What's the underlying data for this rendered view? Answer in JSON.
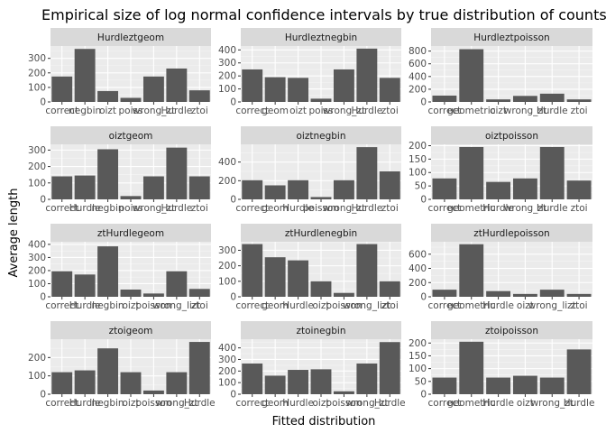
{
  "chart_data": {
    "type": "bar",
    "title": "Empirical size of log normal confidence intervals by true distribution of counts",
    "xlabel": "Fitted distribution",
    "ylabel": "Average length",
    "facet_layout": "3 columns, 4 rows, free scales",
    "grid": true,
    "panel_background": "#ebebeb",
    "strip_background": "#d9d9d9",
    "bar_color": "#595959",
    "panels": [
      {
        "name": "Hurdleztgeom",
        "categories": [
          "correct",
          "negbin",
          "oizt",
          "poisson",
          "wrong_zt",
          "ztHurdle",
          "ztoi"
        ],
        "tick_labels": [
          "correct",
          "negbin",
          "oizt",
          "poiss",
          "wrong_zt",
          "Hurdle",
          "ztoi"
        ],
        "values": [
          175,
          365,
          75,
          28,
          175,
          230,
          80
        ],
        "ylim": [
          0,
          385
        ],
        "yticks": [
          0,
          100,
          200,
          300
        ]
      },
      {
        "name": "Hurdleztnegbin",
        "categories": [
          "correct",
          "geom",
          "oizt",
          "poisson",
          "wrong_zt",
          "ztHurdle",
          "ztoi"
        ],
        "tick_labels": [
          "correct",
          "geom",
          "oizt",
          "poiss",
          "wrong_zt",
          "Hurdle",
          "ztoi"
        ],
        "values": [
          250,
          190,
          185,
          25,
          250,
          410,
          185
        ],
        "ylim": [
          0,
          430
        ],
        "yticks": [
          0,
          100,
          200,
          300,
          400
        ]
      },
      {
        "name": "Hurdleztpoisson",
        "categories": [
          "correct",
          "geometric",
          "oizt",
          "wrong_zt",
          "ztHurdle",
          "ztoi"
        ],
        "tick_labels": [
          "correct",
          "geometric",
          "oizt",
          "wrong_zt",
          "Hurdle",
          "ztoi"
        ],
        "values": [
          100,
          830,
          40,
          95,
          130,
          40
        ],
        "ylim": [
          0,
          880
        ],
        "yticks": [
          0,
          200,
          400,
          600,
          800
        ]
      },
      {
        "name": "oiztgeom",
        "categories": [
          "correct",
          "Hurdle",
          "negbin",
          "poisson",
          "wrong_zt",
          "ztHurdle",
          "ztoi"
        ],
        "tick_labels": [
          "correct",
          "Hurdle",
          "negbin",
          "poiss",
          "wrong_zt",
          "Hurdle",
          "ztoi"
        ],
        "values": [
          140,
          145,
          305,
          20,
          140,
          315,
          140
        ],
        "ylim": [
          0,
          335
        ],
        "yticks": [
          0,
          100,
          200,
          300
        ]
      },
      {
        "name": "oiztnegbin",
        "categories": [
          "correct",
          "geom",
          "Hurdle",
          "poisson",
          "wrong_zt",
          "ztHurdle",
          "ztoi"
        ],
        "tick_labels": [
          "correct",
          "geom",
          "Hurdle",
          "poisson",
          "wrong_zt",
          "Hurdle",
          "ztoi"
        ],
        "values": [
          205,
          150,
          205,
          25,
          205,
          560,
          300
        ],
        "ylim": [
          0,
          590
        ],
        "yticks": [
          0,
          200,
          400
        ]
      },
      {
        "name": "oiztpoisson",
        "categories": [
          "correct",
          "geometric",
          "Hurdle",
          "wrong_zt",
          "ztHurdle",
          "ztoi"
        ],
        "tick_labels": [
          "correct",
          "geometric",
          "Hurdle",
          "wrong_zt",
          "Hurdle",
          "ztoi"
        ],
        "values": [
          78,
          195,
          65,
          78,
          195,
          70
        ],
        "ylim": [
          0,
          205
        ],
        "yticks": [
          0,
          50,
          100,
          150,
          200
        ]
      },
      {
        "name": "ztHurdlegeom",
        "categories": [
          "correct",
          "Hurdle",
          "negbin",
          "oizt",
          "poisson",
          "wrong_lizt",
          "ztoi"
        ],
        "tick_labels": [
          "correct",
          "Hurdle",
          "negbin",
          "oizt",
          "poisson",
          "wrong_lizt",
          "ztoi"
        ],
        "values": [
          195,
          170,
          385,
          55,
          25,
          195,
          60
        ],
        "ylim": [
          0,
          420
        ],
        "yticks": [
          0,
          100,
          200,
          300,
          400
        ]
      },
      {
        "name": "ztHurdlenegbin",
        "categories": [
          "correct",
          "geom",
          "Hurdle",
          "oizt",
          "poisson",
          "wrong_lizt",
          "ztoi"
        ],
        "tick_labels": [
          "correct",
          "geom",
          "Hurdle",
          "oizt",
          "poisson",
          "wrong_lizt",
          "ztoi"
        ],
        "values": [
          340,
          255,
          235,
          100,
          25,
          340,
          100
        ],
        "ylim": [
          0,
          355
        ],
        "yticks": [
          0,
          100,
          200,
          300
        ]
      },
      {
        "name": "ztHurdlepoisson",
        "categories": [
          "correct",
          "geometric",
          "Hurdle",
          "oizt",
          "wrong_lizt",
          "ztoi"
        ],
        "tick_labels": [
          "correct",
          "geometric",
          "Hurdle",
          "oizt",
          "wrong_lizt",
          "ztoi"
        ],
        "values": [
          100,
          740,
          80,
          40,
          100,
          40
        ],
        "ylim": [
          0,
          775
        ],
        "yticks": [
          0,
          200,
          400,
          600
        ]
      },
      {
        "name": "ztoigeom",
        "categories": [
          "correct",
          "Hurdle",
          "negbin",
          "oizt",
          "poisson",
          "wrong_zt",
          "ztHurdle"
        ],
        "tick_labels": [
          "correct",
          "Hurdle",
          "negbin",
          "oizt",
          "poisson",
          "wrong_zt",
          "Hurdle"
        ],
        "values": [
          120,
          130,
          250,
          120,
          20,
          120,
          285
        ],
        "ylim": [
          0,
          300
        ],
        "yticks": [
          0,
          100,
          200
        ]
      },
      {
        "name": "ztoinegbin",
        "categories": [
          "correct",
          "geom",
          "Hurdle",
          "oizt",
          "poisson",
          "wrong_zt",
          "ztHurdle"
        ],
        "tick_labels": [
          "correct",
          "geom",
          "Hurdle",
          "oizt",
          "poisson",
          "wrong_zt",
          "Hurdle"
        ],
        "values": [
          265,
          160,
          210,
          215,
          25,
          265,
          450
        ],
        "ylim": [
          0,
          475
        ],
        "yticks": [
          0,
          100,
          200,
          300,
          400
        ]
      },
      {
        "name": "ztoipoisson",
        "categories": [
          "correct",
          "geometric",
          "Hurdle",
          "oizt",
          "wrong_zt",
          "ztHurdle"
        ],
        "tick_labels": [
          "correct",
          "geometric",
          "Hurdle",
          "oizt",
          "wrong_zt",
          "Hurdle"
        ],
        "values": [
          65,
          205,
          65,
          72,
          65,
          175
        ],
        "ylim": [
          0,
          215
        ],
        "yticks": [
          0,
          50,
          100,
          150,
          200
        ]
      }
    ]
  }
}
